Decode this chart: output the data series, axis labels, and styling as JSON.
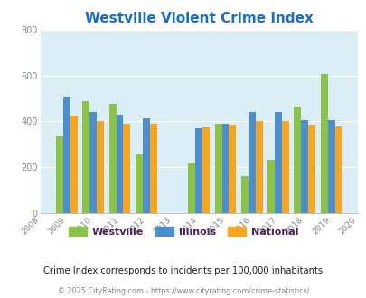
{
  "title": "Westville Violent Crime Index",
  "title_color": "#1a6ebd",
  "subtitle": "Crime Index corresponds to incidents per 100,000 inhabitants",
  "footer": "© 2025 CityRating.com - https://www.cityrating.com/crime-statistics/",
  "years": [
    2009,
    2010,
    2011,
    2012,
    2014,
    2015,
    2016,
    2017,
    2018,
    2019
  ],
  "westville": [
    335,
    490,
    475,
    255,
    220,
    390,
    160,
    232,
    465,
    605
  ],
  "illinois": [
    510,
    440,
    430,
    415,
    370,
    390,
    440,
    440,
    405,
    405
  ],
  "national": [
    425,
    400,
    390,
    390,
    375,
    385,
    400,
    400,
    385,
    380
  ],
  "westville_color": "#8bc34a",
  "illinois_color": "#4d8fcc",
  "national_color": "#f5a623",
  "plot_bg": "#dceef5",
  "ylim": [
    0,
    800
  ],
  "yticks": [
    0,
    200,
    400,
    600,
    800
  ],
  "xlim_min": 2008,
  "xlim_max": 2020,
  "bar_width": 0.27,
  "grid_color": "#ffffff",
  "axis_tick_color": "#888888",
  "subtitle_color": "#222222",
  "footer_color": "#888888",
  "legend_text_color": "#4a235a",
  "all_xticks": [
    2008,
    2009,
    2010,
    2011,
    2012,
    2013,
    2014,
    2015,
    2016,
    2017,
    2018,
    2019,
    2020
  ]
}
